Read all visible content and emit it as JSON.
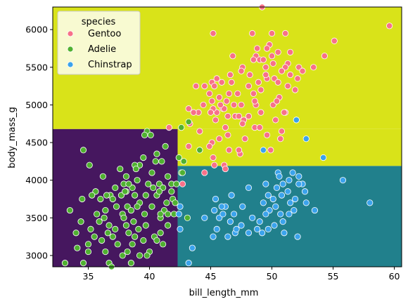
{
  "chart_data": {
    "type": "scatter",
    "xlabel": "bill_length_mm",
    "ylabel": "body_mass_g",
    "xlim": [
      32.1,
      60.6
    ],
    "ylim": [
      2850,
      6300
    ],
    "xticks": [
      35,
      40,
      45,
      50,
      55,
      60
    ],
    "yticks": [
      3000,
      3500,
      4000,
      4500,
      5000,
      5500,
      6000
    ],
    "grid": false,
    "legend": {
      "title": "species",
      "placement": "top-left",
      "entries": [
        {
          "name": "Gentoo",
          "color": "#f77189"
        },
        {
          "name": "Adelie",
          "color": "#50b131"
        },
        {
          "name": "Chinstrap",
          "color": "#3ba3ec"
        }
      ]
    },
    "decision_regions": [
      {
        "x": [
          32.1,
          42.3
        ],
        "y": [
          2850,
          4680
        ],
        "color": "#46175f"
      },
      {
        "x": [
          42.3,
          60.6
        ],
        "y": [
          2850,
          4190
        ],
        "color": "#21808c"
      },
      {
        "x": [
          32.1,
          60.6
        ],
        "y": [
          4680,
          6300
        ],
        "color": "#d9e319"
      },
      {
        "x": [
          42.3,
          60.6
        ],
        "y": [
          4190,
          4680
        ],
        "color": "#d9e319"
      }
    ],
    "series": [
      {
        "name": "Gentoo",
        "color": "#f77189",
        "points": [
          [
            49.2,
            6300
          ],
          [
            59.6,
            6050
          ],
          [
            45.2,
            5950
          ],
          [
            48.4,
            5950
          ],
          [
            50.0,
            5950
          ],
          [
            51.1,
            5950
          ],
          [
            55.1,
            5850
          ],
          [
            49.8,
            5800
          ],
          [
            48.8,
            5750
          ],
          [
            49.6,
            5750
          ],
          [
            50.5,
            5700
          ],
          [
            51.5,
            5700
          ],
          [
            46.8,
            5650
          ],
          [
            48.7,
            5650
          ],
          [
            54.3,
            5650
          ],
          [
            49.0,
            5600
          ],
          [
            49.3,
            5600
          ],
          [
            50.1,
            5550
          ],
          [
            51.3,
            5550
          ],
          [
            47.6,
            5500
          ],
          [
            49.5,
            5500
          ],
          [
            51.1,
            5500
          ],
          [
            52.2,
            5500
          ],
          [
            53.4,
            5500
          ],
          [
            50.8,
            5450
          ],
          [
            52.5,
            5450
          ],
          [
            46.6,
            5400
          ],
          [
            48.2,
            5400
          ],
          [
            51.5,
            5400
          ],
          [
            45.5,
            5350
          ],
          [
            50.2,
            5350
          ],
          [
            52.1,
            5350
          ],
          [
            45.1,
            5300
          ],
          [
            50.5,
            5300
          ],
          [
            48.1,
            5250
          ],
          [
            51.3,
            5250
          ],
          [
            44.5,
            5250
          ],
          [
            49.1,
            5200
          ],
          [
            51.9,
            5200
          ],
          [
            46.5,
            5150
          ],
          [
            47.2,
            5150
          ],
          [
            48.5,
            5150
          ],
          [
            50.6,
            5100
          ],
          [
            46.3,
            5050
          ],
          [
            45.7,
            5100
          ],
          [
            47.5,
            5000
          ],
          [
            50.1,
            5000
          ],
          [
            51.1,
            4900
          ],
          [
            45.4,
            4800
          ],
          [
            43.3,
            4750
          ],
          [
            47.0,
            4850
          ],
          [
            48.1,
            4850
          ],
          [
            45.5,
            4900
          ],
          [
            49.1,
            4900
          ],
          [
            46.0,
            4950
          ],
          [
            43.2,
            4950
          ],
          [
            45.2,
            4950
          ],
          [
            46.9,
            5000
          ],
          [
            44.4,
            5000
          ],
          [
            48.7,
            5000
          ],
          [
            46.1,
            4950
          ],
          [
            47.7,
            4800
          ],
          [
            47.3,
            4850
          ],
          [
            46.2,
            4700
          ],
          [
            48.6,
            4700
          ],
          [
            50.8,
            4650
          ],
          [
            49.6,
            4600
          ],
          [
            45.7,
            4550
          ],
          [
            46.4,
            4600
          ],
          [
            47.8,
            4550
          ],
          [
            49.9,
            4400
          ],
          [
            45.1,
            4500
          ],
          [
            46.5,
            4400
          ],
          [
            45.2,
            4300
          ],
          [
            47.4,
            4350
          ],
          [
            46.1,
            4200
          ],
          [
            43.2,
            4450
          ],
          [
            44.9,
            4450
          ],
          [
            42.7,
            3950
          ],
          [
            41.6,
            4700
          ],
          [
            46.2,
            4150
          ],
          [
            44.5,
            4100
          ],
          [
            45.3,
            4200
          ],
          [
            47.3,
            4400
          ],
          [
            51.0,
            4900
          ],
          [
            50.3,
            4800
          ],
          [
            50.7,
            4550
          ],
          [
            49.0,
            4700
          ],
          [
            50.4,
            5050
          ],
          [
            48.5,
            5600
          ],
          [
            47.5,
            5450
          ],
          [
            48.6,
            5050
          ],
          [
            49.6,
            5350
          ],
          [
            52.0,
            4800
          ],
          [
            49.5,
            5400
          ],
          [
            48.9,
            5300
          ],
          [
            45.3,
            5250
          ],
          [
            46.7,
            5300
          ],
          [
            43.8,
            5250
          ],
          [
            45.8,
            5000
          ],
          [
            44.0,
            4900
          ],
          [
            43.6,
            4900
          ],
          [
            45.9,
            5300
          ],
          [
            47.6,
            4750
          ],
          [
            45.0,
            4900
          ],
          [
            44.9,
            5150
          ],
          [
            45.1,
            5050
          ],
          [
            50.0,
            5650
          ],
          [
            46.4,
            4850
          ],
          [
            44.1,
            4650
          ]
        ]
      },
      {
        "name": "Adelie",
        "color": "#50b131",
        "points": [
          [
            39.8,
            4650
          ],
          [
            39.6,
            4600
          ],
          [
            43.2,
            4775
          ],
          [
            42.6,
            4700
          ],
          [
            40.1,
            4600
          ],
          [
            41.3,
            4450
          ],
          [
            40.6,
            4350
          ],
          [
            44.1,
            4400
          ],
          [
            42.4,
            4300
          ],
          [
            34.6,
            4400
          ],
          [
            39.5,
            4300
          ],
          [
            41.0,
            4250
          ],
          [
            39.2,
            4200
          ],
          [
            38.8,
            4200
          ],
          [
            37.6,
            4150
          ],
          [
            38.9,
            4150
          ],
          [
            40.2,
            4100
          ],
          [
            41.5,
            4050
          ],
          [
            42.6,
            4100
          ],
          [
            35.1,
            4200
          ],
          [
            36.2,
            4050
          ],
          [
            38.1,
            4050
          ],
          [
            37.9,
            3950
          ],
          [
            39.9,
            3950
          ],
          [
            40.8,
            3950
          ],
          [
            41.8,
            3950
          ],
          [
            38.6,
            3900
          ],
          [
            40.3,
            3900
          ],
          [
            41.1,
            3900
          ],
          [
            37.2,
            3900
          ],
          [
            38.1,
            3850
          ],
          [
            35.6,
            3850
          ],
          [
            36.8,
            3800
          ],
          [
            37.7,
            3800
          ],
          [
            38.8,
            3800
          ],
          [
            40.6,
            3800
          ],
          [
            35.3,
            3800
          ],
          [
            36.0,
            3750
          ],
          [
            34.5,
            3750
          ],
          [
            39.2,
            3700
          ],
          [
            41.4,
            3700
          ],
          [
            37.3,
            3650
          ],
          [
            38.2,
            3650
          ],
          [
            39.0,
            3650
          ],
          [
            40.2,
            3650
          ],
          [
            36.4,
            3600
          ],
          [
            33.5,
            3600
          ],
          [
            38.5,
            3600
          ],
          [
            41.2,
            3600
          ],
          [
            35.7,
            3550
          ],
          [
            37.8,
            3550
          ],
          [
            39.6,
            3550
          ],
          [
            42.0,
            3550
          ],
          [
            36.3,
            3500
          ],
          [
            37.9,
            3500
          ],
          [
            40.9,
            3500
          ],
          [
            34.4,
            3450
          ],
          [
            35.9,
            3450
          ],
          [
            38.7,
            3450
          ],
          [
            36.7,
            3400
          ],
          [
            38.1,
            3400
          ],
          [
            39.7,
            3400
          ],
          [
            41.5,
            3400
          ],
          [
            35.2,
            3350
          ],
          [
            37.2,
            3350
          ],
          [
            39.1,
            3350
          ],
          [
            34.0,
            3300
          ],
          [
            36.6,
            3300
          ],
          [
            38.3,
            3300
          ],
          [
            40.9,
            3300
          ],
          [
            35.5,
            3250
          ],
          [
            37.0,
            3250
          ],
          [
            38.8,
            3250
          ],
          [
            40.4,
            3250
          ],
          [
            36.1,
            3200
          ],
          [
            39.5,
            3200
          ],
          [
            35.0,
            3150
          ],
          [
            37.4,
            3150
          ],
          [
            38.6,
            3150
          ],
          [
            41.1,
            3150
          ],
          [
            34.1,
            3100
          ],
          [
            36.4,
            3050
          ],
          [
            38.2,
            3050
          ],
          [
            40.0,
            3050
          ],
          [
            35.0,
            3050
          ],
          [
            37.8,
            3000
          ],
          [
            39.8,
            3000
          ],
          [
            36.7,
            2900
          ],
          [
            38.5,
            2900
          ],
          [
            33.1,
            2900
          ],
          [
            34.6,
            2900
          ],
          [
            36.9,
            2850
          ],
          [
            42.8,
            4250
          ],
          [
            42.7,
            4100
          ],
          [
            42.2,
            3950
          ],
          [
            41.8,
            3850
          ],
          [
            41.9,
            3750
          ],
          [
            42.1,
            3700
          ],
          [
            41.5,
            3550
          ],
          [
            40.6,
            3200
          ],
          [
            39.2,
            3000
          ],
          [
            40.9,
            3550
          ],
          [
            43.1,
            3500
          ],
          [
            44.1,
            4400
          ],
          [
            38.0,
            3850
          ],
          [
            37.0,
            3750
          ],
          [
            36.5,
            3800
          ],
          [
            39.7,
            3800
          ],
          [
            40.8,
            3850
          ],
          [
            38.3,
            3950
          ],
          [
            39.0,
            4000
          ],
          [
            40.5,
            4250
          ]
        ]
      },
      {
        "name": "Chinstrap",
        "color": "#3ba3ec",
        "points": [
          [
            52.0,
            4800
          ],
          [
            52.8,
            4550
          ],
          [
            49.3,
            4400
          ],
          [
            54.2,
            4300
          ],
          [
            55.8,
            4000
          ],
          [
            52.2,
            4050
          ],
          [
            51.7,
            4100
          ],
          [
            50.5,
            4100
          ],
          [
            50.6,
            4050
          ],
          [
            51.4,
            4000
          ],
          [
            50.9,
            3950
          ],
          [
            52.5,
            3950
          ],
          [
            49.5,
            3950
          ],
          [
            48.1,
            3900
          ],
          [
            51.3,
            3850
          ],
          [
            52.7,
            3850
          ],
          [
            50.8,
            3800
          ],
          [
            49.7,
            3800
          ],
          [
            46.7,
            3800
          ],
          [
            45.4,
            3750
          ],
          [
            50.1,
            3750
          ],
          [
            51.5,
            3700
          ],
          [
            49.3,
            3700
          ],
          [
            52.8,
            3700
          ],
          [
            47.6,
            3650
          ],
          [
            46.2,
            3650
          ],
          [
            50.3,
            3650
          ],
          [
            45.9,
            3650
          ],
          [
            49.8,
            3600
          ],
          [
            51.8,
            3600
          ],
          [
            51.4,
            3550
          ],
          [
            46.9,
            3550
          ],
          [
            49.5,
            3550
          ],
          [
            45.7,
            3500
          ],
          [
            48.4,
            3500
          ],
          [
            50.9,
            3450
          ],
          [
            46.6,
            3450
          ],
          [
            47.5,
            3400
          ],
          [
            50.2,
            3400
          ],
          [
            42.5,
            3350
          ],
          [
            49.7,
            3350
          ],
          [
            47.0,
            3300
          ],
          [
            48.1,
            3300
          ],
          [
            51.0,
            3300
          ],
          [
            44.5,
            3500
          ],
          [
            45.2,
            3250
          ],
          [
            46.4,
            3250
          ],
          [
            52.1,
            3250
          ],
          [
            43.5,
            3100
          ],
          [
            42.4,
            3550
          ],
          [
            42.5,
            3650
          ],
          [
            45.3,
            3600
          ],
          [
            46.0,
            3550
          ],
          [
            50.7,
            3550
          ],
          [
            49.0,
            3450
          ],
          [
            58.0,
            3700
          ],
          [
            53.5,
            3600
          ],
          [
            51.9,
            3750
          ],
          [
            52.2,
            3950
          ],
          [
            48.8,
            3350
          ],
          [
            43.2,
            2900
          ],
          [
            45.5,
            3350
          ],
          [
            49.2,
            3300
          ],
          [
            47.1,
            3350
          ],
          [
            50.4,
            3900
          ]
        ]
      }
    ]
  }
}
